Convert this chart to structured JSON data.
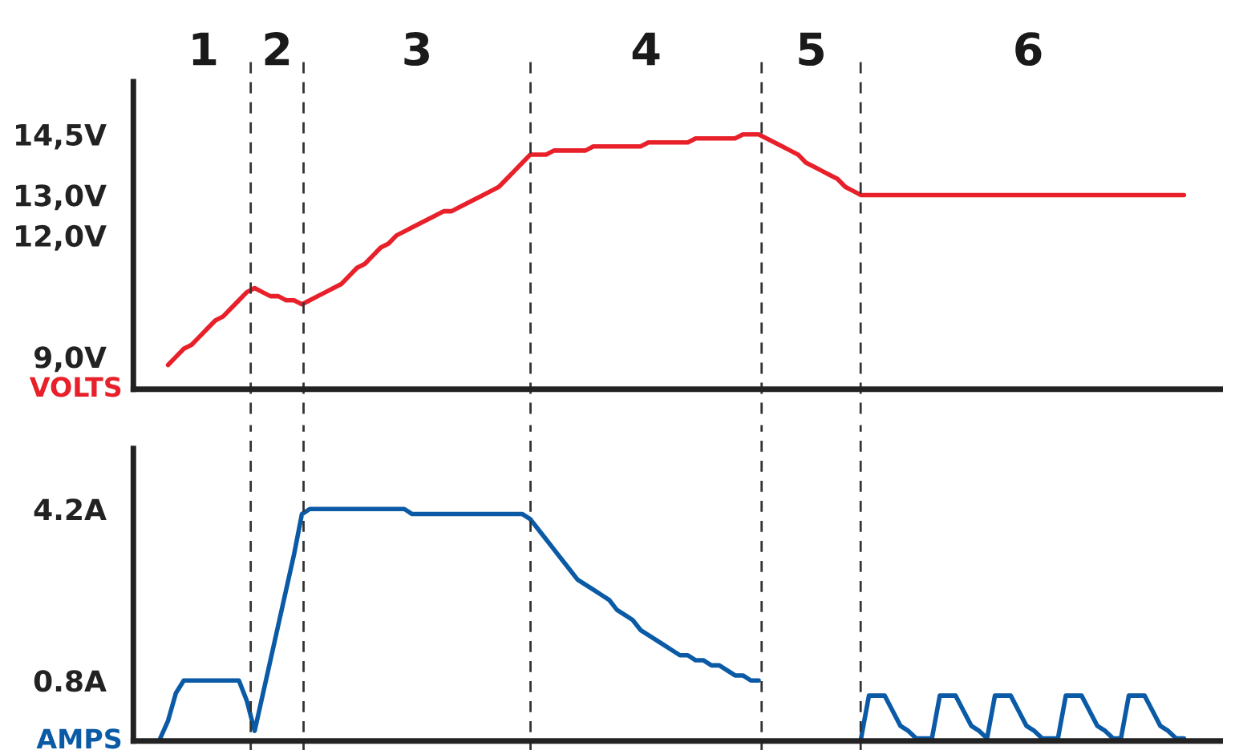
{
  "chart_data": [
    {
      "type": "line",
      "ylabel": "VOLTS",
      "tick_labels": "y",
      "grid": false,
      "legend": false,
      "marker": "none",
      "line_style": "solid",
      "annotations": [
        "1",
        "2",
        "3",
        "4",
        "5",
        "6"
      ],
      "categories": [
        null,
        null,
        null,
        null,
        null,
        null,
        null,
        null,
        null,
        null,
        null,
        null,
        null,
        null,
        null,
        null,
        null,
        null,
        null,
        null,
        null,
        null,
        null,
        null,
        null,
        null,
        null,
        null,
        null,
        null,
        null,
        null,
        null,
        null,
        null,
        null,
        null,
        null,
        null,
        null,
        null,
        null,
        null,
        null,
        null,
        null,
        null,
        null,
        null,
        null,
        null,
        null,
        null,
        null,
        null,
        null,
        null,
        null,
        null,
        null,
        null,
        null,
        null,
        null,
        null,
        null,
        null,
        null,
        null,
        null,
        null,
        null,
        null,
        null,
        null,
        null,
        null,
        null,
        null,
        null,
        null,
        null,
        null,
        null,
        null,
        null,
        null,
        null,
        null,
        null,
        null,
        null,
        null,
        null,
        null,
        null,
        null,
        null,
        null,
        null,
        null,
        null,
        null,
        null,
        null,
        null,
        null,
        null,
        null,
        null,
        null,
        null,
        null,
        null,
        null,
        null,
        null,
        null,
        null,
        null,
        null,
        null,
        null,
        null,
        null,
        null,
        null,
        null,
        null,
        null,
        null,
        null
      ],
      "ylim": [
        8.2,
        15.8
      ],
      "yticks": [
        {
          "value": 9.0,
          "label": "9,0V"
        },
        {
          "value": 12.0,
          "label": "12,0V"
        },
        {
          "value": 13.0,
          "label": "13,0V"
        },
        {
          "value": 14.5,
          "label": "14,5V"
        }
      ],
      "series": [
        {
          "color": "#e8202a",
          "values": [
            null,
            8.8,
            9.0,
            9.2,
            9.3,
            9.5,
            9.7,
            9.9,
            10.0,
            10.2,
            10.4,
            10.6,
            10.7,
            10.6,
            10.5,
            10.5,
            10.4,
            10.4,
            10.3,
            10.4,
            10.5,
            10.6,
            10.7,
            10.8,
            11.0,
            11.2,
            11.3,
            11.5,
            11.7,
            11.8,
            12.0,
            12.1,
            12.2,
            12.3,
            12.4,
            12.5,
            12.6,
            12.6,
            12.7,
            12.8,
            12.9,
            13.0,
            13.1,
            13.2,
            13.4,
            13.6,
            13.8,
            14.0,
            14.0,
            14.0,
            14.1,
            14.1,
            14.1,
            14.1,
            14.1,
            14.2,
            14.2,
            14.2,
            14.2,
            14.2,
            14.2,
            14.2,
            14.3,
            14.3,
            14.3,
            14.3,
            14.3,
            14.3,
            14.4,
            14.4,
            14.4,
            14.4,
            14.4,
            14.4,
            14.5,
            14.5,
            14.5,
            14.4,
            14.3,
            14.2,
            14.1,
            14.0,
            13.8,
            13.7,
            13.6,
            13.5,
            13.4,
            13.2,
            13.1,
            13.0,
            13.0,
            13.0,
            13.0,
            13.0,
            13.0,
            13.0,
            13.0,
            13.0,
            13.0,
            13.0,
            13.0,
            13.0,
            13.0,
            13.0,
            13.0,
            13.0,
            13.0,
            13.0,
            13.0,
            13.0,
            13.0,
            13.0,
            13.0,
            13.0,
            13.0,
            13.0,
            13.0,
            13.0,
            13.0,
            13.0,
            13.0,
            13.0,
            13.0,
            13.0,
            13.0,
            13.0,
            13.0,
            13.0,
            13.0,
            13.0,
            13.0,
            null
          ]
        }
      ]
    },
    {
      "type": "line",
      "ylabel": "AMPS",
      "tick_labels": "y",
      "grid": false,
      "legend": false,
      "marker": "none",
      "line_style": "solid",
      "categories": [
        null,
        null,
        null,
        null,
        null,
        null,
        null,
        null,
        null,
        null,
        null,
        null,
        null,
        null,
        null,
        null,
        null,
        null,
        null,
        null,
        null,
        null,
        null,
        null,
        null,
        null,
        null,
        null,
        null,
        null,
        null,
        null,
        null,
        null,
        null,
        null,
        null,
        null,
        null,
        null,
        null,
        null,
        null,
        null,
        null,
        null,
        null,
        null,
        null,
        null,
        null,
        null,
        null,
        null,
        null,
        null,
        null,
        null,
        null,
        null,
        null,
        null,
        null,
        null,
        null,
        null,
        null,
        null,
        null,
        null,
        null,
        null,
        null,
        null,
        null,
        null,
        null,
        null,
        null,
        null,
        null,
        null,
        null,
        null,
        null,
        null,
        null,
        null,
        null,
        null,
        null,
        null,
        null,
        null,
        null,
        null,
        null,
        null,
        null,
        null,
        null,
        null,
        null,
        null,
        null,
        null,
        null,
        null,
        null,
        null,
        null,
        null,
        null,
        null,
        null,
        null,
        null,
        null,
        null,
        null,
        null,
        null,
        null,
        null,
        null,
        null,
        null,
        null,
        null,
        null,
        null,
        null
      ],
      "ylim": [
        -0.4,
        5.4
      ],
      "yticks": [
        {
          "value": 0.8,
          "label": "0.8A"
        },
        {
          "value": 4.2,
          "label": "4.2A"
        }
      ],
      "series": [
        {
          "color": "#0a5aa6",
          "values": [
            -0.35,
            0.0,
            0.55,
            0.8,
            0.8,
            0.8,
            0.8,
            0.8,
            0.8,
            0.8,
            0.8,
            0.4,
            -0.2,
            0.5,
            1.2,
            1.9,
            2.6,
            3.3,
            4.1,
            4.2,
            4.2,
            4.2,
            4.2,
            4.2,
            4.2,
            4.2,
            4.2,
            4.2,
            4.2,
            4.2,
            4.2,
            4.2,
            4.1,
            4.1,
            4.1,
            4.1,
            4.1,
            4.1,
            4.1,
            4.1,
            4.1,
            4.1,
            4.1,
            4.1,
            4.1,
            4.1,
            4.1,
            4.0,
            3.8,
            3.6,
            3.4,
            3.2,
            3.0,
            2.8,
            2.7,
            2.6,
            2.5,
            2.4,
            2.2,
            2.1,
            2.0,
            1.8,
            1.7,
            1.6,
            1.5,
            1.4,
            1.3,
            1.3,
            1.2,
            1.2,
            1.1,
            1.1,
            1.0,
            0.9,
            0.9,
            0.8,
            0.8,
            null,
            null,
            null,
            null,
            null,
            null,
            null,
            null,
            null,
            null,
            null,
            null,
            null,
            null,
            null,
            null,
            null,
            null,
            null,
            null,
            null,
            null,
            null,
            null,
            null,
            null,
            null,
            null,
            null,
            null,
            null,
            null,
            null,
            null,
            null,
            null,
            null,
            null,
            null,
            null,
            null,
            null,
            null,
            null,
            null,
            null,
            null,
            null,
            null,
            null,
            null,
            null,
            null,
            null,
            null
          ]
        },
        {
          "color": "#0a5aa6",
          "values": [
            null,
            null,
            null,
            null,
            null,
            null,
            null,
            null,
            null,
            null,
            null,
            null,
            null,
            null,
            null,
            null,
            null,
            null,
            null,
            null,
            null,
            null,
            null,
            null,
            null,
            null,
            null,
            null,
            null,
            null,
            null,
            null,
            null,
            null,
            null,
            null,
            null,
            null,
            null,
            null,
            null,
            null,
            null,
            null,
            null,
            null,
            null,
            null,
            null,
            null,
            null,
            null,
            null,
            null,
            null,
            null,
            null,
            null,
            null,
            null,
            null,
            null,
            null,
            null,
            null,
            null,
            null,
            null,
            null,
            null,
            null,
            null,
            null,
            null,
            null,
            null,
            null,
            null,
            null,
            null,
            null,
            null,
            null,
            null,
            null,
            null,
            null,
            null,
            null,
            -0.35,
            0.5,
            0.5,
            0.5,
            0.2,
            -0.1,
            -0.2,
            -0.35,
            -0.35,
            -0.35,
            0.5,
            0.5,
            0.5,
            0.2,
            -0.1,
            -0.2,
            -0.35,
            0.5,
            0.5,
            0.5,
            0.2,
            -0.1,
            -0.2,
            -0.35,
            -0.35,
            -0.35,
            0.5,
            0.5,
            0.5,
            0.2,
            -0.1,
            -0.2,
            -0.35,
            -0.35,
            0.5,
            0.5,
            0.5,
            0.2,
            -0.1,
            -0.2,
            -0.35,
            -0.35,
            null
          ]
        }
      ]
    }
  ]
}
